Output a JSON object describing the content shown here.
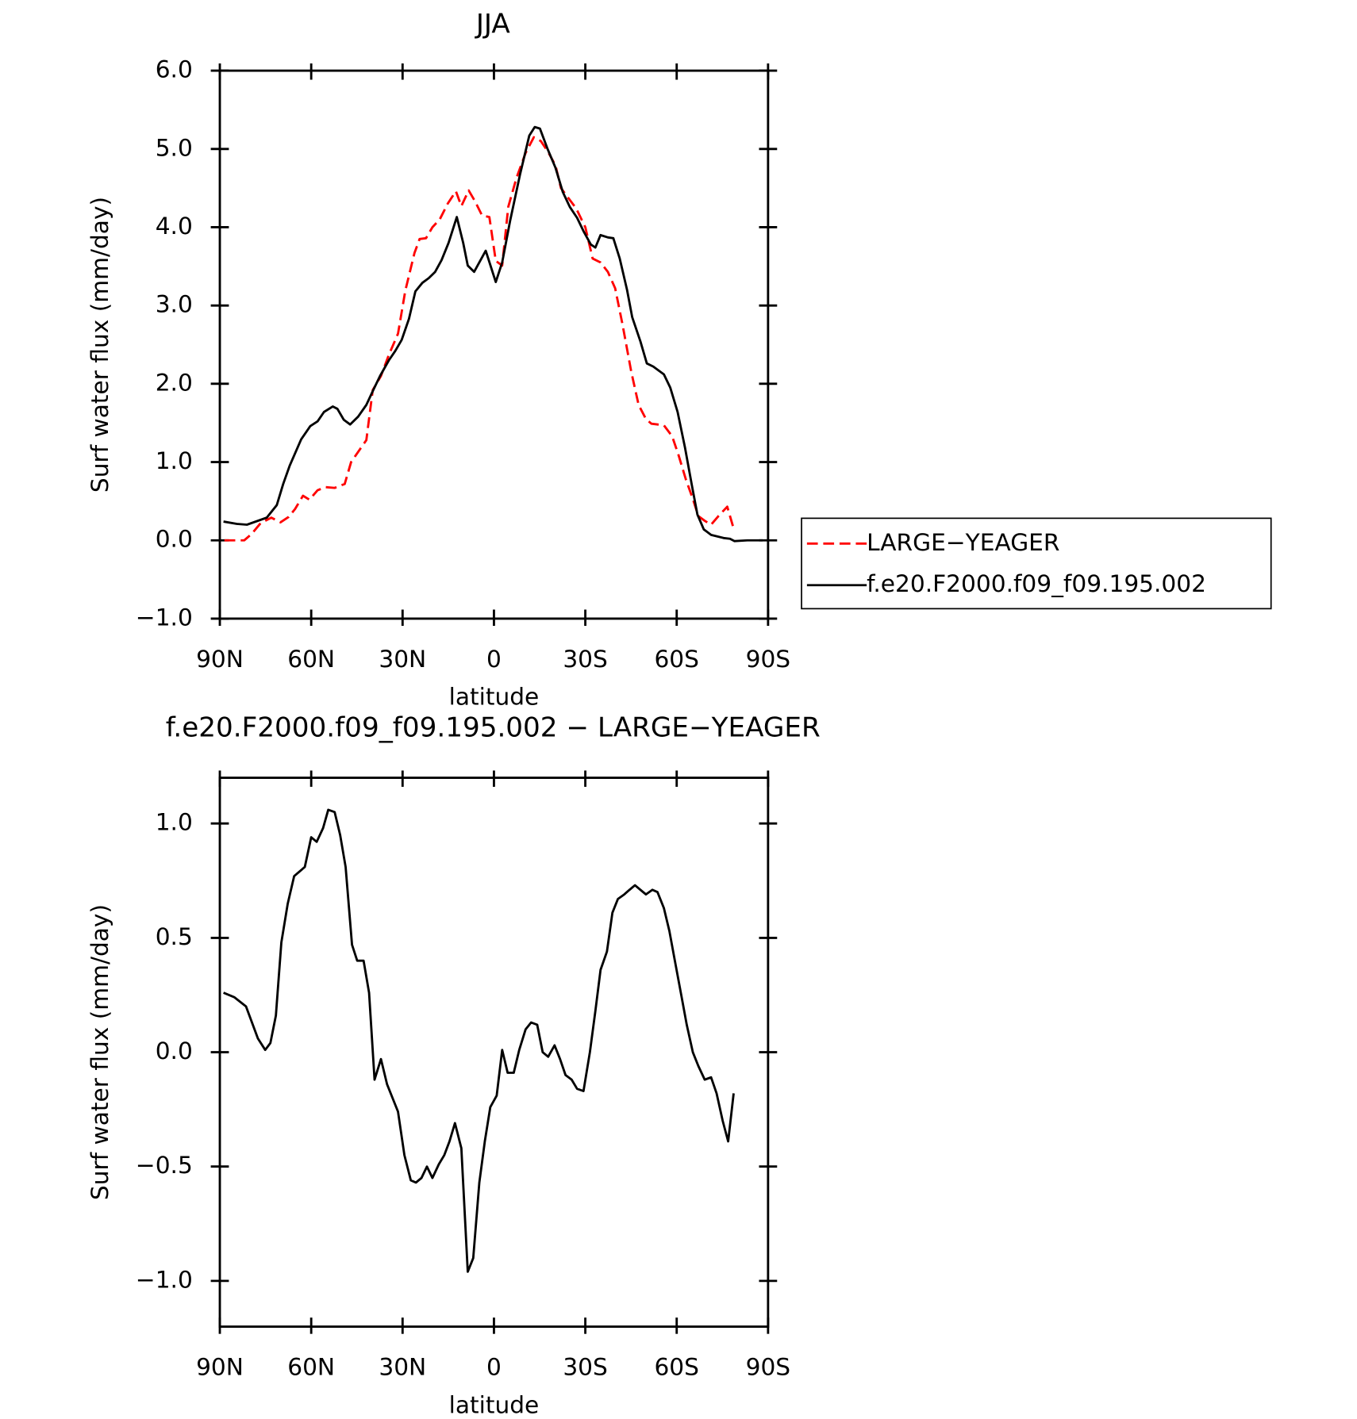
{
  "chart_data": [
    {
      "type": "line",
      "title": "JJA",
      "xlabel": "latitude",
      "ylabel": "Surf water flux (mm/day)",
      "xlim": [
        90,
        -90
      ],
      "xticks": [
        {
          "value": 90,
          "label": "90N"
        },
        {
          "value": 60,
          "label": "60N"
        },
        {
          "value": 30,
          "label": "30N"
        },
        0,
        {
          "value": -30,
          "label": "30S"
        },
        {
          "value": -60,
          "label": "60S"
        },
        {
          "value": -90,
          "label": "90S"
        }
      ],
      "ylim": [
        -1,
        6
      ],
      "yticks": [
        {
          "value": -1,
          "label": "−1.0"
        },
        {
          "value": 0,
          "label": "0.0"
        },
        {
          "value": 1,
          "label": "1.0"
        },
        {
          "value": 2,
          "label": "2.0"
        },
        {
          "value": 3,
          "label": "3.0"
        },
        {
          "value": 4,
          "label": "4.0"
        },
        {
          "value": 5,
          "label": "5.0"
        },
        {
          "value": 6,
          "label": "6.0"
        }
      ],
      "legend": "right",
      "series": [
        {
          "name": "LARGE−YEAGER",
          "color": "#ff0000",
          "dash": true,
          "x": [
            88.5,
            82.0,
            79.6,
            76.6,
            73.1,
            70.1,
            67.4,
            65.3,
            62.7,
            60.6,
            57.9,
            55.3,
            52.3,
            49.0,
            46.9,
            43.7,
            41.9,
            39.8,
            37.1,
            34.5,
            31.5,
            29.1,
            26.1,
            24.4,
            22.3,
            20.2,
            17.8,
            15.2,
            12.5,
            10.7,
            8.3,
            6.2,
            3.9,
            1.5,
            -0.6,
            -2.7,
            -4.7,
            -7.4,
            -10.4,
            -13.1,
            -15.4,
            -17.8,
            -20.2,
            -22.0,
            -24.3,
            -27.0,
            -30.0,
            -32.4,
            -35.0,
            -37.4,
            -39.8,
            -42.2,
            -45.1,
            -47.5,
            -49.9,
            -51.7,
            -55.8,
            -58.5,
            -60.6,
            -63.0,
            -65.3,
            -67.1,
            -69.2,
            -71.3,
            -73.7,
            -76.6,
            -78.7
          ],
          "values": [
            0,
            0,
            0.08,
            0.22,
            0.29,
            0.23,
            0.3,
            0.4,
            0.57,
            0.52,
            0.64,
            0.68,
            0.67,
            0.72,
            1.0,
            1.18,
            1.28,
            1.92,
            2.1,
            2.37,
            2.64,
            3.19,
            3.67,
            3.85,
            3.86,
            4.0,
            4.1,
            4.3,
            4.46,
            4.27,
            4.47,
            4.33,
            4.15,
            4.13,
            3.57,
            3.51,
            4.26,
            4.63,
            4.95,
            5.15,
            5.1,
            4.96,
            4.79,
            4.5,
            4.38,
            4.24,
            4.0,
            3.6,
            3.55,
            3.43,
            3.22,
            2.76,
            2.15,
            1.73,
            1.55,
            1.49,
            1.47,
            1.33,
            1.09,
            0.78,
            0.53,
            0.31,
            0.25,
            0.2,
            0.31,
            0.43,
            0.15
          ]
        },
        {
          "name": "f.e20.F2000.f09_f09.195.002",
          "color": "#000000",
          "x": [
            88.8,
            84.4,
            81.1,
            74.6,
            71.3,
            69.2,
            67.1,
            63.3,
            60.3,
            57.9,
            55.8,
            52.9,
            51.4,
            49.3,
            47.2,
            44.6,
            41.9,
            39.5,
            37.4,
            34.5,
            32.4,
            30.3,
            27.9,
            25.8,
            23.5,
            21.4,
            19.3,
            17.2,
            14.9,
            12.2,
            10.1,
            8.6,
            6.5,
            2.7,
            -0.6,
            -2.7,
            -5.3,
            -8.6,
            -11.6,
            -13.4,
            -15.1,
            -17.5,
            -20.2,
            -22.6,
            -24.9,
            -27.3,
            -29.4,
            -31.8,
            -33.3,
            -35.0,
            -37.4,
            -39.2,
            -41.3,
            -43.7,
            -45.4,
            -48.1,
            -50.2,
            -52.3,
            -55.8,
            -57.9,
            -60.3,
            -62.7,
            -65.0,
            -66.8,
            -68.9,
            -71.3,
            -75.4,
            -77.5,
            -79.0,
            -83.2,
            -88.2
          ],
          "values": [
            0.24,
            0.21,
            0.2,
            0.29,
            0.45,
            0.72,
            0.95,
            1.29,
            1.46,
            1.52,
            1.64,
            1.71,
            1.68,
            1.54,
            1.48,
            1.58,
            1.73,
            1.93,
            2.1,
            2.3,
            2.42,
            2.56,
            2.83,
            3.18,
            3.29,
            3.35,
            3.43,
            3.58,
            3.8,
            4.13,
            3.8,
            3.51,
            3.43,
            3.7,
            3.3,
            3.55,
            4.08,
            4.68,
            5.17,
            5.28,
            5.26,
            5.01,
            4.76,
            4.45,
            4.26,
            4.12,
            3.95,
            3.78,
            3.74,
            3.9,
            3.87,
            3.86,
            3.6,
            3.2,
            2.85,
            2.54,
            2.26,
            2.22,
            2.12,
            1.95,
            1.64,
            1.19,
            0.7,
            0.33,
            0.14,
            0.07,
            0.03,
            0.02,
            -0.01,
            0.0,
            0.0
          ]
        }
      ]
    },
    {
      "type": "line",
      "title": "f.e20.F2000.f09_f09.195.002 − LARGE−YEAGER",
      "xlabel": "latitude",
      "ylabel": "Surf water flux (mm/day)",
      "xlim": [
        90,
        -90
      ],
      "xticks": [
        {
          "value": 90,
          "label": "90N"
        },
        {
          "value": 60,
          "label": "60N"
        },
        {
          "value": 30,
          "label": "30N"
        },
        0,
        {
          "value": -30,
          "label": "30S"
        },
        {
          "value": -60,
          "label": "60S"
        },
        {
          "value": -90,
          "label": "90S"
        }
      ],
      "ylim": [
        -1.2,
        1.2
      ],
      "yticks": [
        {
          "value": -1,
          "label": "−1.0"
        },
        {
          "value": -0.5,
          "label": "−0.5"
        },
        {
          "value": 0,
          "label": "0.0"
        },
        0.5,
        {
          "value": 1,
          "label": "1.0"
        }
      ],
      "x": [
        88.8,
        85.2,
        81.4,
        77.5,
        75.1,
        73.4,
        71.6,
        69.8,
        67.7,
        65.6,
        62.1,
        60.0,
        58.2,
        56.1,
        54.4,
        52.3,
        50.5,
        48.7,
        46.6,
        44.9,
        42.8,
        41.0,
        39.2,
        37.1,
        35.1,
        33.3,
        31.5,
        29.4,
        27.3,
        25.6,
        23.8,
        22.0,
        20.2,
        18.1,
        16.3,
        14.6,
        12.8,
        10.7,
        8.6,
        6.8,
        4.8,
        3.0,
        1.2,
        -0.9,
        -2.7,
        -4.5,
        -6.5,
        -8.3,
        -10.4,
        -12.2,
        -14.2,
        -16.0,
        -17.8,
        -19.9,
        -21.7,
        -23.5,
        -25.5,
        -27.3,
        -29.4,
        -31.5,
        -33.3,
        -35.0,
        -37.1,
        -38.9,
        -40.7,
        -42.8,
        -44.5,
        -46.3,
        -48.1,
        -49.9,
        -52.0,
        -53.7,
        -55.8,
        -57.6,
        -59.4,
        -61.5,
        -63.3,
        -65.3,
        -67.1,
        -69.2,
        -71.3,
        -73.1,
        -75.1,
        -76.9,
        -78.7
      ],
      "series": [
        {
          "color": "#000000",
          "values": [
            0.26,
            0.24,
            0.2,
            0.06,
            0.01,
            0.04,
            0.16,
            0.48,
            0.65,
            0.77,
            0.81,
            0.94,
            0.92,
            0.98,
            1.06,
            1.05,
            0.95,
            0.81,
            0.47,
            0.4,
            0.4,
            0.26,
            -0.12,
            -0.03,
            -0.14,
            -0.2,
            -0.26,
            -0.45,
            -0.56,
            -0.57,
            -0.55,
            -0.5,
            -0.55,
            -0.49,
            -0.45,
            -0.39,
            -0.31,
            -0.42,
            -0.96,
            -0.9,
            -0.57,
            -0.39,
            -0.24,
            -0.19,
            0.01,
            -0.09,
            -0.09,
            0.01,
            0.1,
            0.13,
            0.12,
            0.0,
            -0.02,
            0.03,
            -0.03,
            -0.1,
            -0.12,
            -0.16,
            -0.17,
            0.0,
            0.18,
            0.36,
            0.44,
            0.61,
            0.67,
            0.69,
            0.71,
            0.73,
            0.71,
            0.69,
            0.71,
            0.7,
            0.63,
            0.53,
            0.4,
            0.25,
            0.12,
            0.0,
            -0.06,
            -0.12,
            -0.11,
            -0.18,
            -0.3,
            -0.39,
            -0.18
          ]
        }
      ]
    }
  ]
}
